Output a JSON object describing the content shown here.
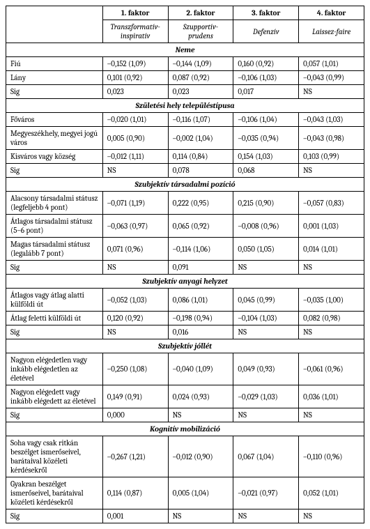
{
  "headers": {
    "f1": "1. faktor",
    "f2": "2. faktor",
    "f3": "3. faktor",
    "f4": "4. faktor",
    "s1": "Transzformatív-inspiratív",
    "s2": "Szupportív-prudens",
    "s3": "Defenzív",
    "s4": "Laissez-faire"
  },
  "sections": {
    "neme": "Neme",
    "szul": "Születési hely településtípusa",
    "tarspoz": "Szubjektív társadalmi pozíció",
    "anyagi": "Szubjektív anyagi helyzet",
    "jollet": "Szubjektív jóllét",
    "kognitiv": "Kognitív mobilizáció"
  },
  "rows": {
    "fiu": {
      "label": "Fiú",
      "v": [
        "–0,152 (1,09)",
        "–0,144 (1,09)",
        "0,160 (0,92)",
        "0,057 (1,01)"
      ]
    },
    "lany": {
      "label": "Lány",
      "v": [
        "0,101 (0,92)",
        "0,087 (0,92)",
        "–0,106 (1,03)",
        "–0,043 (0,99)"
      ]
    },
    "sig1": {
      "label": "Sig",
      "v": [
        "0,023",
        "0,023",
        "0,017",
        "NS"
      ]
    },
    "fovaros": {
      "label": "Főváros",
      "v": [
        "–0,020 (1,01)",
        "–0,116 (1,07)",
        "–0,106 (1,04)",
        "–0,043 (1,03)"
      ]
    },
    "megye": {
      "label": "Megyeszékhely, megyei jogú város",
      "v": [
        "0,005 (0,90)",
        "–0,002 (1,04)",
        "–0,035 (0,94)",
        "–0,043 (0,98)"
      ]
    },
    "kisvaros": {
      "label": "Kisváros vagy község",
      "v": [
        "–0,012 (1,11)",
        "0,114 (0,84)",
        "0,154 (1,03)",
        "0,103 (0,99)"
      ]
    },
    "sig2": {
      "label": "Sig",
      "v": [
        "NS",
        "0,078",
        "0,068",
        "NS"
      ]
    },
    "alacsony": {
      "label": "Alacsony társadalmi státusz (legfeljebb 4 pont)",
      "v": [
        "–0,071 (1,19)",
        "0,222 (0,95)",
        "0,215 (0,90)",
        "–0,057 (0,83)"
      ]
    },
    "atlagos": {
      "label": "Átlagos társadalmi státusz (5–6 pont)",
      "v": [
        "–0,063 (0,97)",
        "0,065 (0,92)",
        "–0,008 (0,96)",
        "0,001 (1,03)"
      ]
    },
    "magas": {
      "label": "Magas társadalmi státusz (legalább 7 pont)",
      "v": [
        "0,071 (0,96)",
        "–0,114 (1,06)",
        "0,050 (1,05)",
        "0,014 (1,01)"
      ]
    },
    "sig3": {
      "label": "Sig",
      "v": [
        "NS",
        "0,091",
        "NS",
        "NS"
      ]
    },
    "atlkulf": {
      "label": "Átlagos vagy átlag alatti külföldi út",
      "v": [
        "–0,052 (1,03)",
        "0,086 (1,01)",
        "0,045 (0,99)",
        "–0,035 (1,00)"
      ]
    },
    "atlfelett": {
      "label": "Átlag feletti külföldi út",
      "v": [
        "0,120 (0,92)",
        "–0,198 (0,94)",
        "–0,104 (1,03)",
        "0,082 (0,98)"
      ]
    },
    "sig4": {
      "label": "Sig",
      "v": [
        "NS",
        "0,016",
        "NS",
        "NS"
      ]
    },
    "elegedetlen": {
      "label": "Nagyon elégedetlen vagy inkább elégedetlen az életével",
      "v": [
        "–0,250 (1,08)",
        "–0,040 (1,09)",
        "0,049 (0,93)",
        "–0,061 (0,96)"
      ]
    },
    "elegedett": {
      "label": "Nagyon elégedett vagy inkább elégedett az életével",
      "v": [
        "0,149 (0,91)",
        "0,024 (0,93)",
        "–0,029 (1,03)",
        "0,036 (1,01)"
      ]
    },
    "sig5": {
      "label": "Sig",
      "v": [
        "0,000",
        "NS",
        "NS",
        "NS"
      ]
    },
    "soha": {
      "label": "Soha vagy csak ritkán beszélget ismerőseivel, barátaival közéleti kérdésekről",
      "v": [
        "–0,267 (1,21)",
        "–0,012 (0,90)",
        "0,067 (1,04)",
        "–0,110 (0,96)"
      ]
    },
    "gyakran": {
      "label": "Gyakran beszélget ismerőseivel, barátaival közéleti kérdésekről",
      "v": [
        "0,114 (0,87)",
        "0,005 (1,04)",
        "–0,021 (0,97)",
        "0,052 (1,01)"
      ]
    },
    "sig6": {
      "label": "Sig",
      "v": [
        "0,001",
        "NS",
        "NS",
        "NS"
      ]
    }
  }
}
